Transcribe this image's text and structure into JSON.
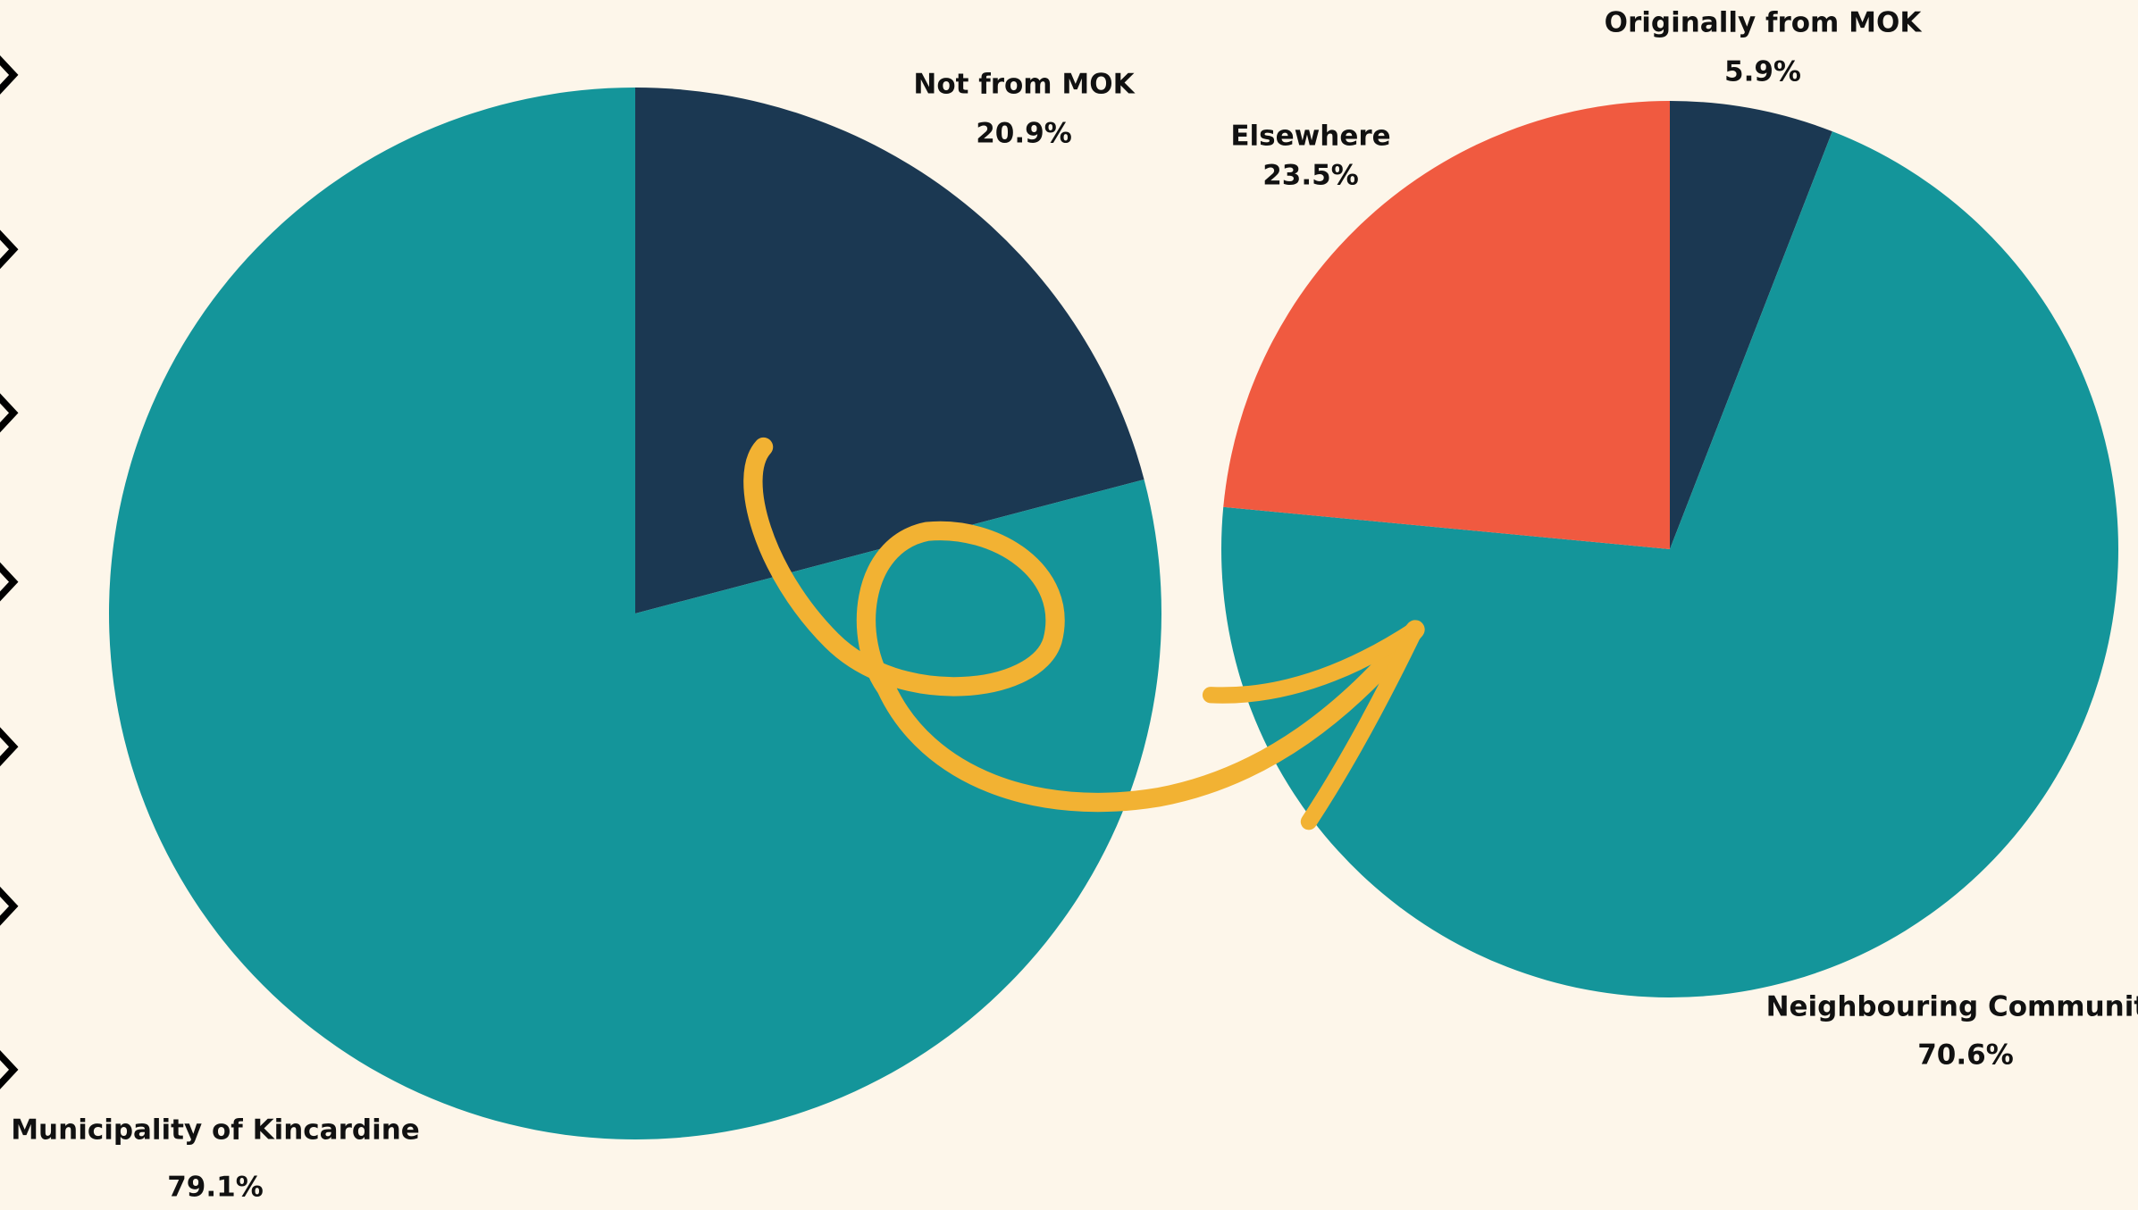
{
  "chart_data": [
    {
      "type": "pie",
      "categories": [
        "Not from MOK",
        "Municipality of Kincardine"
      ],
      "values": [
        20.9,
        79.1
      ],
      "value_labels": [
        "20.9%",
        "79.1%"
      ],
      "colors": [
        "#1b3852",
        "#14959a"
      ]
    },
    {
      "type": "pie",
      "categories": [
        "Originally from MOK",
        "Neighbouring Community",
        "Elsewhere"
      ],
      "values": [
        5.9,
        70.6,
        23.5
      ],
      "value_labels": [
        "5.9%",
        "70.6%",
        "23.5%"
      ],
      "colors": [
        "#1b3852",
        "#14959a",
        "#f05a40"
      ]
    }
  ]
}
